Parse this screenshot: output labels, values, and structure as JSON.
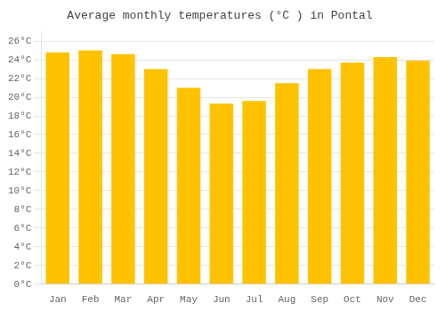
{
  "chart_data": {
    "type": "bar",
    "title": "Average monthly temperatures (°C ) in Pontal",
    "categories": [
      "Jan",
      "Feb",
      "Mar",
      "Apr",
      "May",
      "Jun",
      "Jul",
      "Aug",
      "Sep",
      "Oct",
      "Nov",
      "Dec"
    ],
    "values": [
      24.8,
      25.0,
      24.6,
      23.0,
      21.0,
      19.3,
      19.6,
      21.5,
      23.0,
      23.7,
      24.3,
      23.9
    ],
    "color": "#FFC200",
    "ylim": [
      0,
      27
    ],
    "yticks": [
      {
        "value": 0,
        "label": "0°C"
      },
      {
        "value": 2,
        "label": "2°C"
      },
      {
        "value": 4,
        "label": "4°C"
      },
      {
        "value": 6,
        "label": "6°C"
      },
      {
        "value": 8,
        "label": "8°C"
      },
      {
        "value": 10,
        "label": "10°C"
      },
      {
        "value": 12,
        "label": "12°C"
      },
      {
        "value": 14,
        "label": "14°C"
      },
      {
        "value": 16,
        "label": "16°C"
      },
      {
        "value": 18,
        "label": "18°C"
      },
      {
        "value": 20,
        "label": "20°C"
      },
      {
        "value": 22,
        "label": "22°C"
      },
      {
        "value": 24,
        "label": "24°C"
      },
      {
        "value": 26,
        "label": "26°C"
      }
    ],
    "grid": true
  }
}
